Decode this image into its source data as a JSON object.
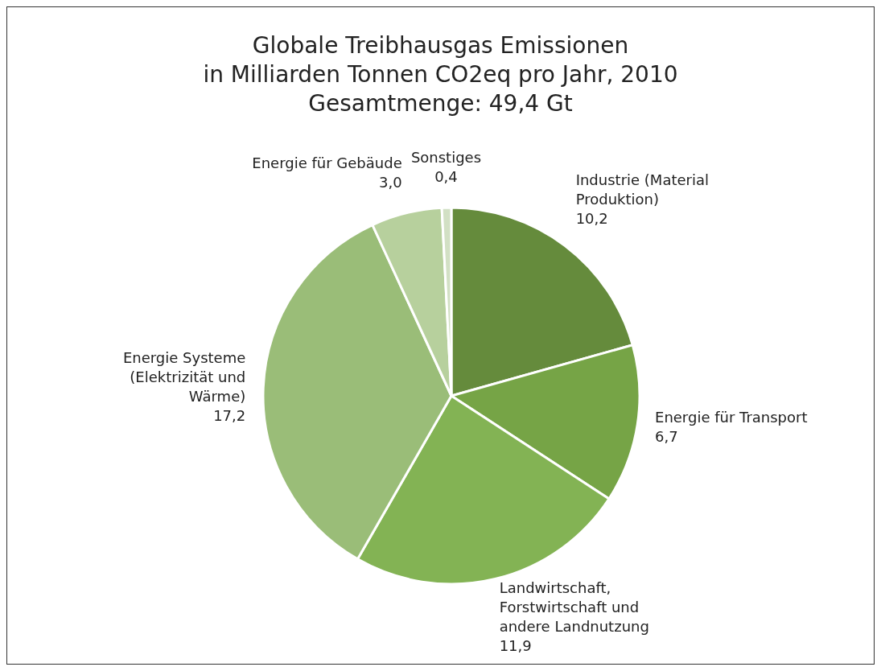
{
  "chart_data": {
    "type": "pie",
    "title": "Globale Treibhausgas Emissionen",
    "subtitle": "in Milliarden Tonnen CO2eq pro Jahr, 2010",
    "annotations": [
      "Gesamtmenge: 49,4 Gt"
    ],
    "categories": [
      "Industrie (Material Produktion)",
      "Energie für Transport",
      "Landwirtschaft, Forstwirtschaft und andere Landnutzung",
      "Energie Systeme (Elektrizität und Wärme)",
      "Energie für Gebäude",
      "Sonstiges"
    ],
    "values": [
      10.2,
      6.7,
      11.9,
      17.2,
      3.0,
      0.4
    ],
    "value_labels": [
      "10,2",
      "6,7",
      "11,9",
      "17,2",
      "3,0",
      "0,4"
    ],
    "colors": [
      "#658b3c",
      "#76a446",
      "#83b354",
      "#9abd78",
      "#b7d09d",
      "#d2e0c4"
    ],
    "legend": false
  }
}
